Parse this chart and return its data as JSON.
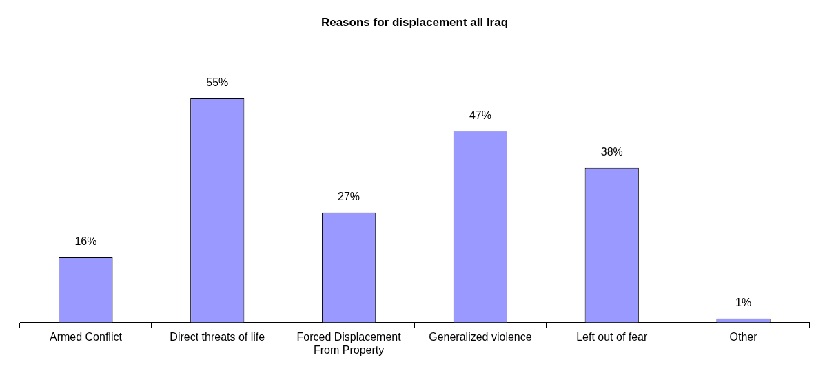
{
  "chart_data": {
    "type": "bar",
    "title": "Reasons for displacement all Iraq",
    "categories": [
      "Armed Conflict",
      "Direct threats of life",
      "Forced Displacement From Property",
      "Generalized violence",
      "Left out of fear",
      "Other"
    ],
    "values": [
      16,
      55,
      27,
      47,
      38,
      1
    ],
    "value_labels": [
      "16%",
      "55%",
      "27%",
      "47%",
      "38%",
      "1%"
    ],
    "color": "#9999ff",
    "grid": false,
    "legend": false
  }
}
